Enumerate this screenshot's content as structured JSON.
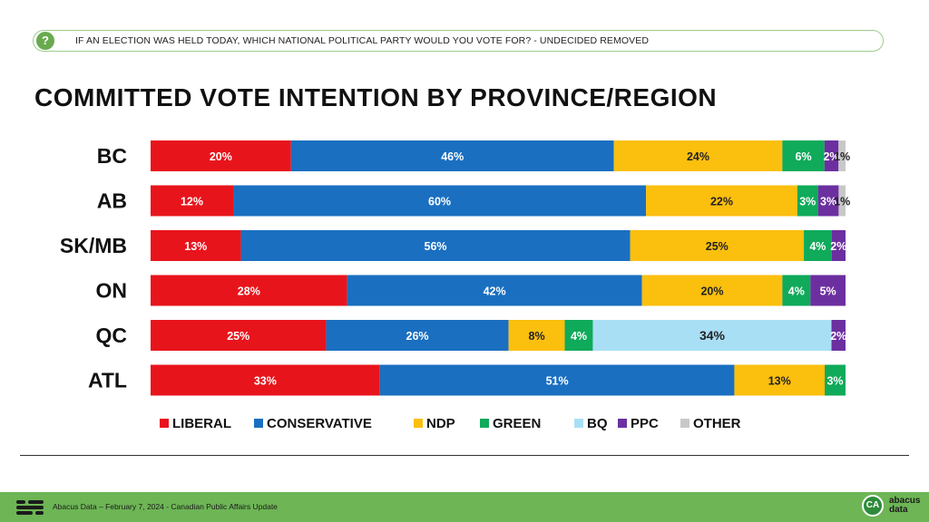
{
  "header": {
    "question_icon": "?",
    "question": "IF AN ELECTION WAS HELD TODAY, WHICH NATIONAL POLITICAL PARTY WOULD YOU VOTE FOR? - UNDECIDED REMOVED"
  },
  "footer": {
    "source": "Abacus Data – February 7, 2024 - Canadian Public Affairs Update",
    "badge": "CA",
    "brand_line1": "abacus",
    "brand_line2": "data"
  },
  "chart_data": {
    "type": "bar",
    "orientation": "horizontal",
    "stacked": true,
    "title": "COMMITTED VOTE INTENTION BY PROVINCE/REGION",
    "categories": [
      "BC",
      "AB",
      "SK/MB",
      "ON",
      "QC",
      "ATL"
    ],
    "legend_position": "bottom",
    "series": [
      {
        "name": "LIBERAL",
        "color": "#e8141c",
        "values": [
          20,
          12,
          13,
          28,
          25,
          33
        ]
      },
      {
        "name": "CONSERVATIVE",
        "color": "#1a6fc0",
        "values": [
          46,
          60,
          56,
          42,
          26,
          51
        ]
      },
      {
        "name": "NDP",
        "color": "#fbbf0e",
        "values": [
          24,
          22,
          25,
          20,
          8,
          13
        ]
      },
      {
        "name": "GREEN",
        "color": "#0faa5a",
        "values": [
          6,
          3,
          4,
          4,
          4,
          3
        ]
      },
      {
        "name": "BQ",
        "color": "#a9dff5",
        "values": [
          0,
          0,
          0,
          0,
          34,
          0
        ]
      },
      {
        "name": "PPC",
        "color": "#6c2fa0",
        "values": [
          2,
          3,
          2,
          5,
          2,
          0
        ]
      },
      {
        "name": "OTHER",
        "color": "#c8c8c8",
        "values": [
          1,
          1,
          0,
          0,
          0,
          0
        ]
      }
    ]
  }
}
